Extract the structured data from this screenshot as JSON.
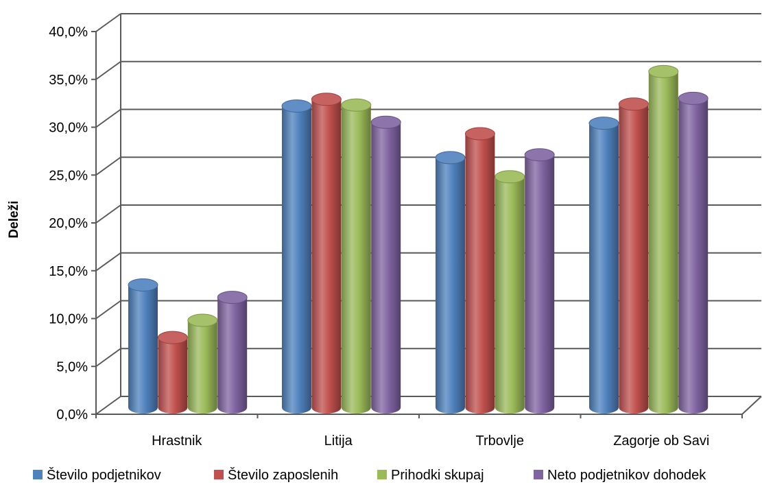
{
  "chart_data": {
    "type": "bar",
    "title": "",
    "xlabel": "",
    "ylabel": "Deleži",
    "ylim": [
      0,
      40
    ],
    "ytick_labels": [
      "0,0%",
      "5,0%",
      "10,0%",
      "15,0%",
      "20,0%",
      "25,0%",
      "30,0%",
      "35,0%",
      "40,0%"
    ],
    "categories": [
      "Hrastnik",
      "Litija",
      "Trbovlje",
      "Zagorje ob Savi"
    ],
    "series": [
      {
        "name": "Število podjetnikov",
        "color": "#4F81BD",
        "values": [
          12.8,
          31.5,
          26.1,
          29.7
        ]
      },
      {
        "name": "Število zaposlenih",
        "color": "#C0504D",
        "values": [
          7.3,
          32.2,
          28.6,
          31.7
        ]
      },
      {
        "name": "Prihodki skupaj",
        "color": "#9BBB59",
        "values": [
          9.1,
          31.6,
          24.1,
          35.1
        ]
      },
      {
        "name": "Neto podjetnikov dohodek",
        "color": "#8064A2",
        "values": [
          11.5,
          29.8,
          26.4,
          32.3
        ]
      }
    ],
    "grid": true,
    "legend_position": "bottom",
    "style": "3d-cylinder"
  }
}
